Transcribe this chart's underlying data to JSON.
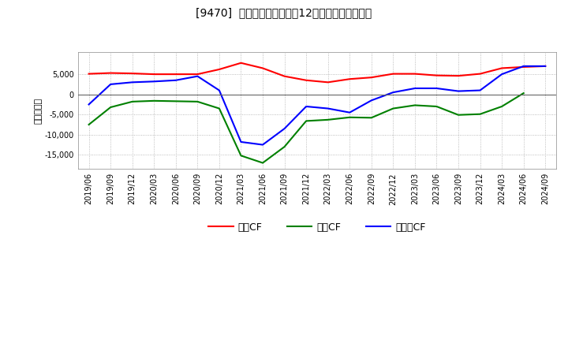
{
  "title": "[9470]  キャッシュフローの12か月移動合計の推移",
  "ylabel": "（百万円）",
  "background_color": "#ffffff",
  "plot_bg_color": "#ffffff",
  "grid_color": "#aaaaaa",
  "dates": [
    "2019/06",
    "2019/09",
    "2019/12",
    "2020/03",
    "2020/06",
    "2020/09",
    "2020/12",
    "2021/03",
    "2021/06",
    "2021/09",
    "2021/12",
    "2022/03",
    "2022/06",
    "2022/09",
    "2022/12",
    "2023/03",
    "2023/06",
    "2023/09",
    "2023/12",
    "2024/03",
    "2024/06",
    "2024/09"
  ],
  "operating_cf": [
    5100,
    5300,
    5200,
    5000,
    5000,
    5000,
    6200,
    7800,
    6500,
    4500,
    3500,
    3000,
    3800,
    4200,
    5100,
    5100,
    4700,
    4600,
    5100,
    6500,
    6800,
    7000
  ],
  "investing_cf": [
    -7500,
    -3200,
    -1800,
    -1600,
    -1700,
    -1800,
    -3500,
    -15200,
    -17000,
    -13000,
    -6600,
    -6300,
    -5700,
    -5800,
    -3500,
    -2700,
    -3000,
    -5100,
    -4900,
    -3000,
    300,
    null
  ],
  "free_cf": [
    -2500,
    2500,
    3000,
    3200,
    3500,
    4500,
    1000,
    -11800,
    -12500,
    -8500,
    -3000,
    -3500,
    -4500,
    -1500,
    500,
    1500,
    1500,
    800,
    1000,
    5000,
    7000,
    7000
  ],
  "operating_color": "#ff0000",
  "investing_color": "#008000",
  "free_color": "#0000ff",
  "line_width": 1.5,
  "ylim_min": -18500,
  "ylim_max": 10500,
  "yticks": [
    -15000,
    -10000,
    -5000,
    0,
    5000
  ],
  "legend_labels": [
    "営業CF",
    "投資CF",
    "フリーCF"
  ]
}
